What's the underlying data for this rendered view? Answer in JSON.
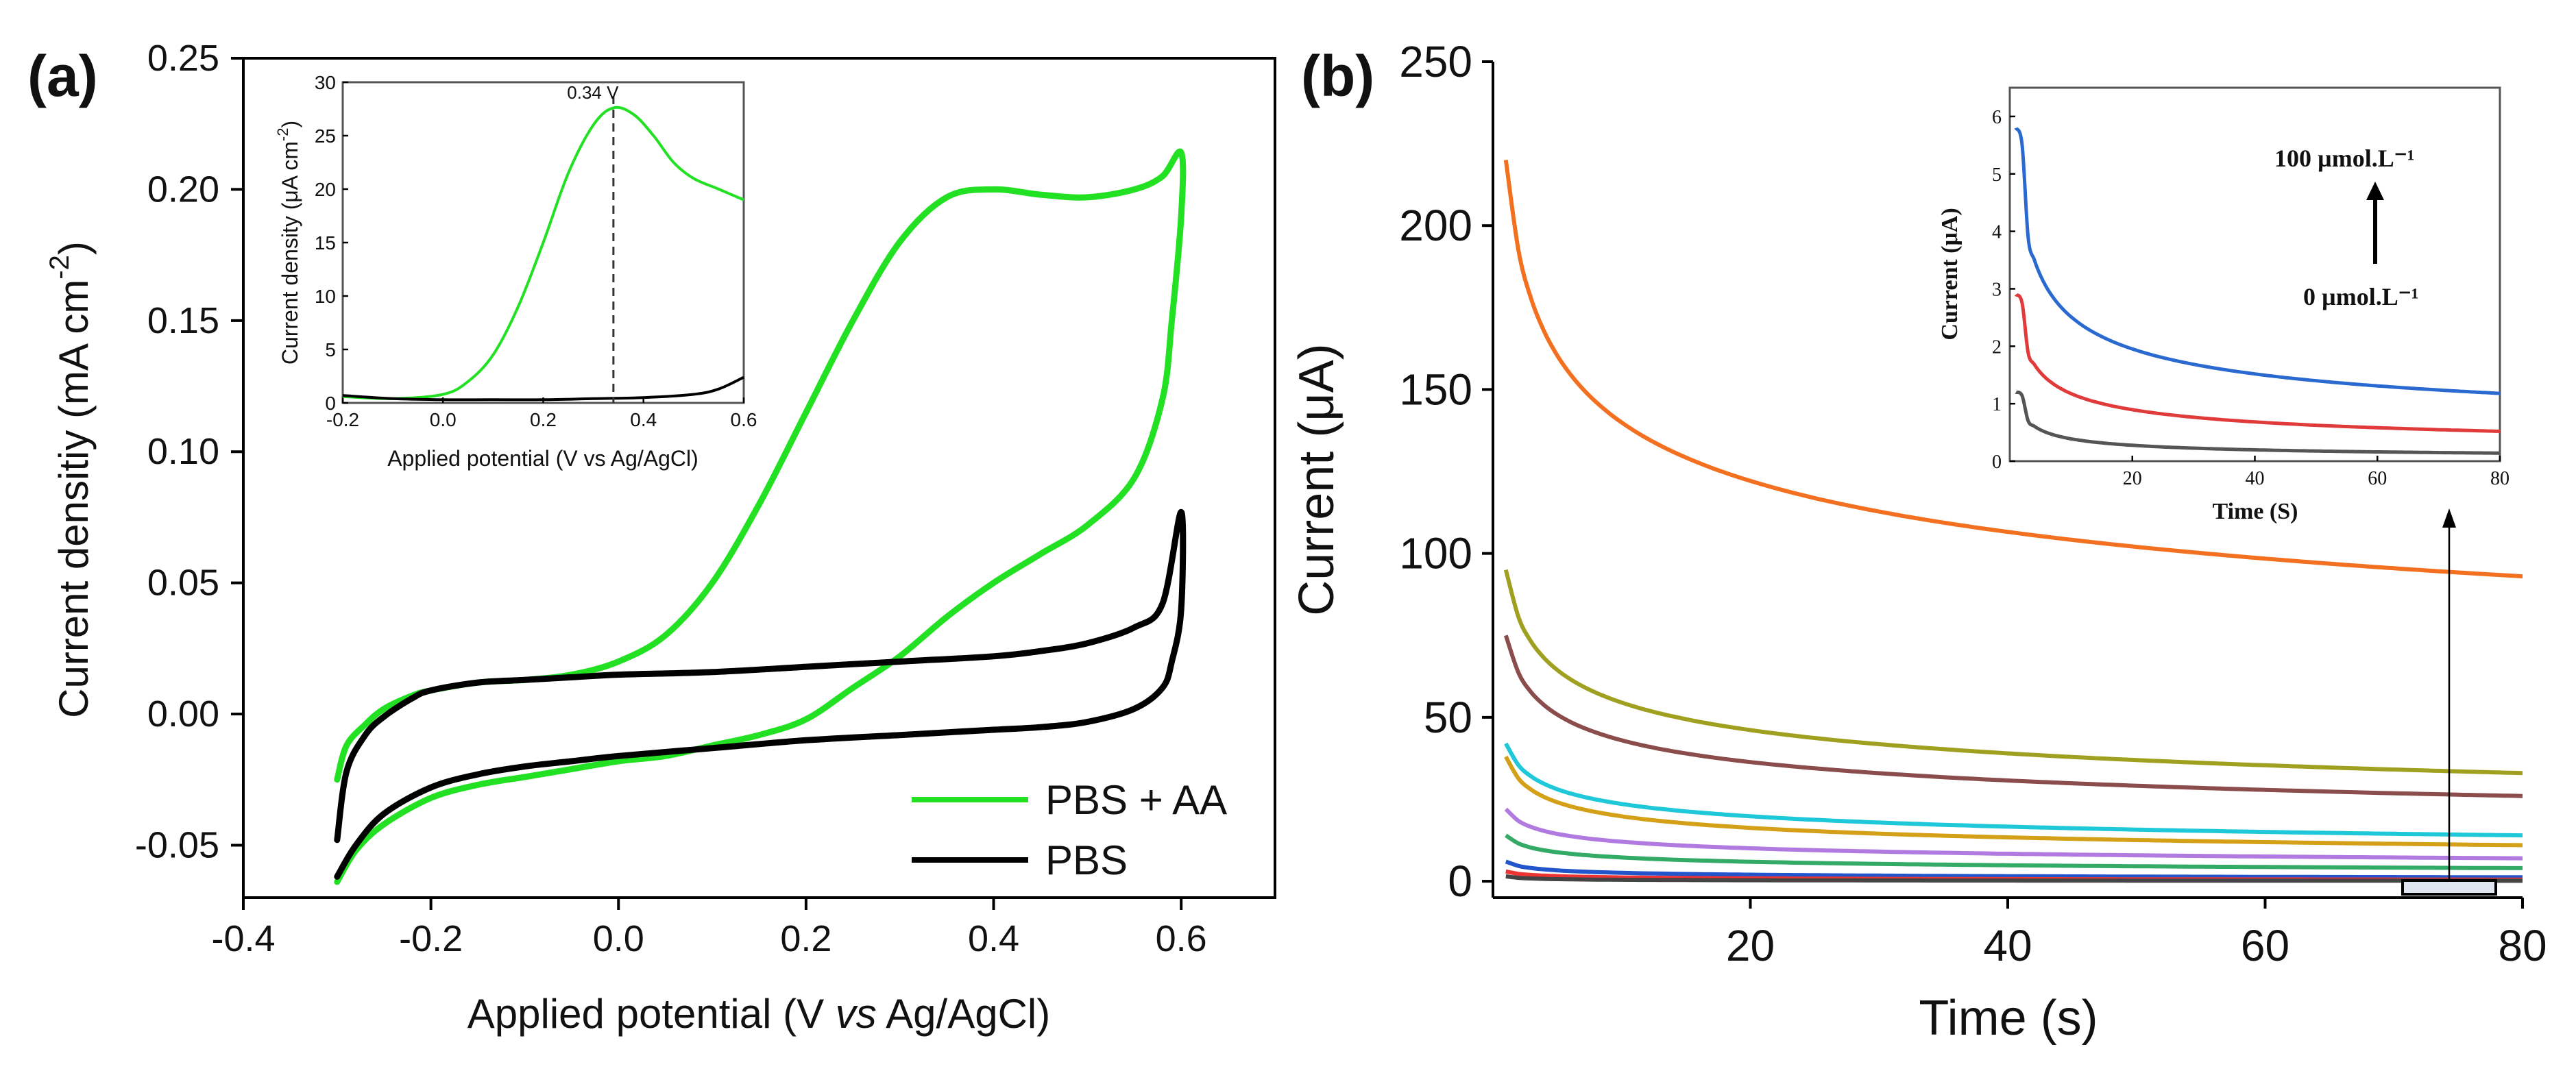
{
  "chart_data": [
    {
      "panel": "(a)",
      "type": "line",
      "xlabel_parts": [
        "Applied potential (V ",
        "vs",
        " Ag/AgCl)"
      ],
      "ylabel_parts": [
        "Current densitiy (mA cm",
        "-2",
        ")"
      ],
      "xlim": [
        -0.4,
        0.7
      ],
      "ylim": [
        -0.07,
        0.25
      ],
      "xticks": [
        "-0.4",
        "-0.2",
        "0.0",
        "0.2",
        "0.4",
        "0.6"
      ],
      "yticks": [
        "-0.05",
        "0.00",
        "0.05",
        "0.10",
        "0.15",
        "0.20",
        "0.25"
      ],
      "legend_position": "bottom-right",
      "series": [
        {
          "name": "PBS + AA",
          "color": "#22e022",
          "x": [
            -0.3,
            -0.29,
            -0.27,
            -0.25,
            -0.22,
            -0.2,
            -0.15,
            -0.1,
            -0.05,
            0.0,
            0.05,
            0.1,
            0.15,
            0.2,
            0.25,
            0.3,
            0.35,
            0.4,
            0.45,
            0.5,
            0.55,
            0.58,
            0.6,
            0.6,
            0.59,
            0.58,
            0.55,
            0.5,
            0.45,
            0.4,
            0.35,
            0.3,
            0.25,
            0.2,
            0.15,
            0.1,
            0.05,
            0.0,
            -0.05,
            -0.1,
            -0.15,
            -0.2,
            -0.25,
            -0.28,
            -0.3
          ],
          "y": [
            -0.025,
            -0.012,
            -0.004,
            0.002,
            0.007,
            0.009,
            0.012,
            0.013,
            0.015,
            0.02,
            0.03,
            0.05,
            0.08,
            0.115,
            0.15,
            0.18,
            0.197,
            0.2,
            0.198,
            0.197,
            0.2,
            0.205,
            0.214,
            0.19,
            0.15,
            0.12,
            0.09,
            0.072,
            0.061,
            0.05,
            0.037,
            0.022,
            0.01,
            -0.002,
            -0.008,
            -0.012,
            -0.016,
            -0.018,
            -0.021,
            -0.024,
            -0.027,
            -0.032,
            -0.042,
            -0.052,
            -0.064
          ]
        },
        {
          "name": "PBS",
          "color": "#000000",
          "x": [
            -0.3,
            -0.29,
            -0.27,
            -0.25,
            -0.22,
            -0.2,
            -0.15,
            -0.1,
            -0.05,
            0.0,
            0.1,
            0.2,
            0.3,
            0.4,
            0.45,
            0.5,
            0.55,
            0.58,
            0.6,
            0.6,
            0.59,
            0.58,
            0.55,
            0.5,
            0.45,
            0.4,
            0.3,
            0.2,
            0.1,
            0.0,
            -0.05,
            -0.1,
            -0.15,
            -0.2,
            -0.25,
            -0.28,
            -0.3
          ],
          "y": [
            -0.048,
            -0.022,
            -0.008,
            -0.001,
            0.006,
            0.009,
            0.012,
            0.013,
            0.014,
            0.015,
            0.016,
            0.018,
            0.02,
            0.022,
            0.024,
            0.027,
            0.033,
            0.042,
            0.077,
            0.04,
            0.02,
            0.01,
            0.002,
            -0.003,
            -0.005,
            -0.006,
            -0.008,
            -0.01,
            -0.013,
            -0.016,
            -0.018,
            -0.02,
            -0.023,
            -0.028,
            -0.038,
            -0.05,
            -0.062
          ]
        }
      ],
      "inset": {
        "type": "line",
        "xlabel": "Applied potential (V vs Ag/AgCl)",
        "ylabel_parts": [
          "Current density (",
          "μ",
          "A cm",
          "-2",
          ")"
        ],
        "xlim": [
          -0.2,
          0.6
        ],
        "ylim": [
          0,
          30
        ],
        "xticks": [
          "-0.2",
          "0.0",
          "0.2",
          "0.4",
          "0.6"
        ],
        "yticks": [
          "0",
          "5",
          "10",
          "15",
          "20",
          "25",
          "30"
        ],
        "annotation": "0.34 V",
        "annotation_x": 0.34,
        "series": [
          {
            "color": "#22e022",
            "x": [
              -0.2,
              -0.1,
              0.0,
              0.05,
              0.1,
              0.15,
              0.2,
              0.25,
              0.3,
              0.34,
              0.38,
              0.42,
              0.46,
              0.5,
              0.55,
              0.6
            ],
            "y": [
              0.6,
              0.4,
              0.8,
              2.0,
              4.5,
              9.0,
              15.0,
              21.5,
              26.0,
              27.6,
              27.0,
              25.0,
              22.5,
              21.0,
              20.0,
              19.0
            ]
          },
          {
            "color": "#000000",
            "x": [
              -0.2,
              -0.1,
              0.0,
              0.1,
              0.2,
              0.3,
              0.4,
              0.5,
              0.55,
              0.6
            ],
            "y": [
              0.7,
              0.4,
              0.3,
              0.3,
              0.3,
              0.4,
              0.5,
              0.8,
              1.3,
              2.4
            ]
          }
        ]
      }
    },
    {
      "panel": "(b)",
      "type": "line",
      "xlabel": "Time (s)",
      "ylabel": "Current (μA)",
      "xlim": [
        0,
        80
      ],
      "ylim": [
        -5,
        250
      ],
      "xticks": [
        "20",
        "40",
        "60",
        "80"
      ],
      "yticks": [
        "0",
        "50",
        "100",
        "150",
        "200",
        "250"
      ],
      "decay_series": [
        {
          "color": "#f37021",
          "i0": 220,
          "i80": 93
        },
        {
          "color": "#a0a020",
          "i0": 95,
          "i80": 33
        },
        {
          "color": "#8b4c4c",
          "i0": 75,
          "i80": 26
        },
        {
          "color": "#1ec8d8",
          "i0": 42,
          "i80": 14
        },
        {
          "color": "#d4a017",
          "i0": 38,
          "i80": 11
        },
        {
          "color": "#b07ae0",
          "i0": 22,
          "i80": 7
        },
        {
          "color": "#33aa66",
          "i0": 14,
          "i80": 4
        },
        {
          "color": "#2255cc",
          "i0": 6,
          "i80": 1.2
        },
        {
          "color": "#ee3333",
          "i0": 3,
          "i80": 0.5
        },
        {
          "color": "#444444",
          "i0": 1.5,
          "i80": 0.15
        }
      ],
      "inset": {
        "type": "line",
        "xlabel": "Time (S)",
        "ylabel_parts": [
          "Current (",
          "μ",
          "A)"
        ],
        "xlim": [
          0,
          80
        ],
        "ylim": [
          0,
          6.5
        ],
        "xticks": [
          "20",
          "40",
          "60",
          "80"
        ],
        "yticks": [
          "0",
          "1",
          "2",
          "3",
          "4",
          "5",
          "6"
        ],
        "annotation_top": "100 µmol.L⁻¹",
        "annotation_bottom": "0 µmol.L⁻¹",
        "series": [
          {
            "color": "#2a6ad0",
            "i0": 5.8,
            "i80": 1.18
          },
          {
            "color": "#e03a3a",
            "i0": 2.9,
            "i80": 0.52
          },
          {
            "color": "#555555",
            "i0": 1.2,
            "i80": 0.14
          }
        ]
      }
    }
  ]
}
